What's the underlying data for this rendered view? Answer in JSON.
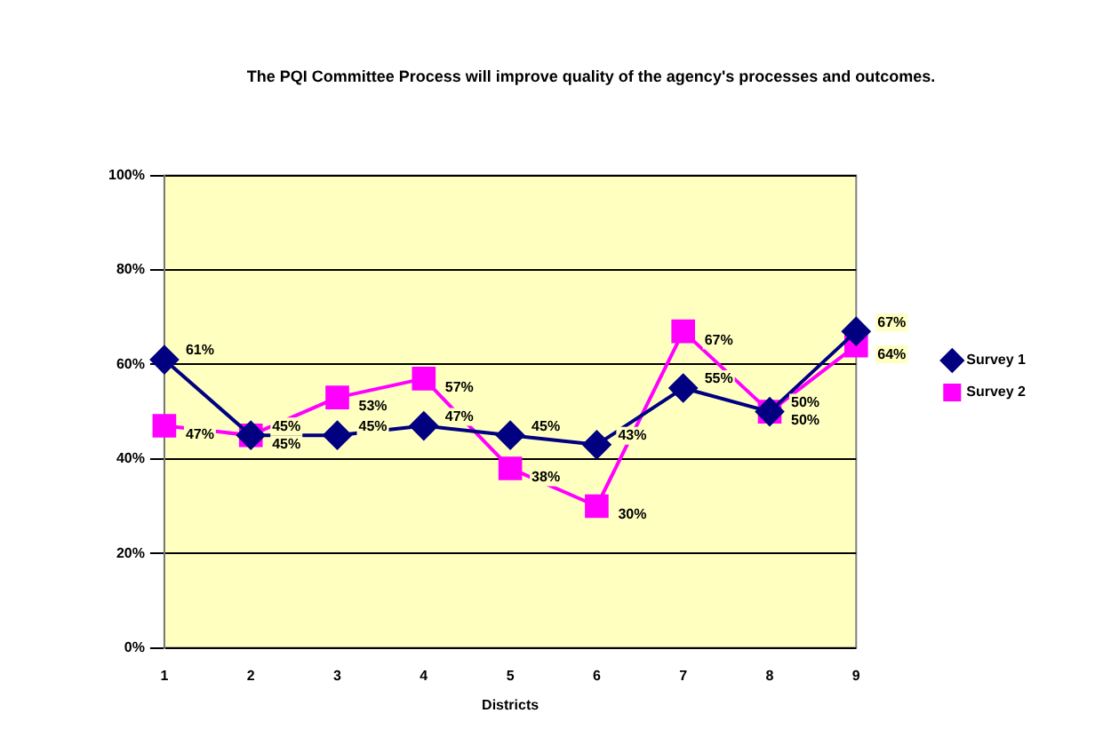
{
  "chart_data": {
    "type": "line",
    "title": "The PQI Committee Process will improve quality of the agency's processes and outcomes.",
    "xlabel": "Districts",
    "categories": [
      "1",
      "2",
      "3",
      "4",
      "5",
      "6",
      "7",
      "8",
      "9"
    ],
    "series": [
      {
        "name": "Survey 1",
        "color": "#000080",
        "marker": "diamond",
        "values": [
          61,
          45,
          45,
          47,
          45,
          43,
          55,
          50,
          67
        ],
        "value_labels": [
          "61%",
          "45%",
          "45%",
          "47%",
          "45%",
          "43%",
          "55%",
          "50%",
          "67%"
        ]
      },
      {
        "name": "Survey 2",
        "color": "#ff00ff",
        "marker": "square",
        "values": [
          47,
          45,
          53,
          57,
          38,
          30,
          67,
          50,
          64
        ],
        "value_labels": [
          "47%",
          "45%",
          "53%",
          "57%",
          "38%",
          "30%",
          "67%",
          "50%",
          "64%"
        ]
      }
    ],
    "ylim": [
      0,
      100
    ],
    "yticks": [
      {
        "value": 0,
        "label": "0%"
      },
      {
        "value": 20,
        "label": "20%"
      },
      {
        "value": 40,
        "label": "40%"
      },
      {
        "value": 60,
        "label": "60%"
      },
      {
        "value": 80,
        "label": "80%"
      },
      {
        "value": 100,
        "label": "100%"
      }
    ],
    "grid": "y",
    "legend": "right",
    "line_style": "solid"
  }
}
